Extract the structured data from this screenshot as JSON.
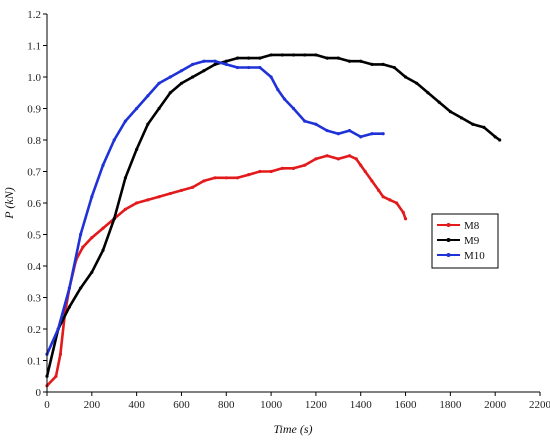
{
  "chart_data": {
    "type": "line",
    "xlabel": "Time (s)",
    "ylabel": "P (kN)",
    "xlim": [
      0,
      2200
    ],
    "ylim": [
      0,
      1.2
    ],
    "xticks": [
      "0",
      "200",
      "400",
      "600",
      "800",
      "1000",
      "1200",
      "1400",
      "1600",
      "1800",
      "2000",
      "2200"
    ],
    "yticks": [
      "0",
      "0.1",
      "0.2",
      "0.3",
      "0.4",
      "0.5",
      "0.6",
      "0.7",
      "0.8",
      "0.9",
      "1.0",
      "1.1",
      "1.2"
    ],
    "legend_position": "right",
    "grid": false,
    "series": [
      {
        "name": "M8",
        "color": "#e31a1c",
        "x": [
          0,
          40,
          60,
          80,
          100,
          130,
          160,
          200,
          250,
          300,
          350,
          400,
          450,
          500,
          550,
          600,
          650,
          700,
          750,
          800,
          850,
          900,
          950,
          1000,
          1050,
          1100,
          1150,
          1200,
          1250,
          1300,
          1350,
          1380,
          1400,
          1420,
          1450,
          1480,
          1500,
          1530,
          1560,
          1590,
          1600
        ],
        "y": [
          0.02,
          0.05,
          0.12,
          0.25,
          0.33,
          0.42,
          0.46,
          0.49,
          0.52,
          0.55,
          0.58,
          0.6,
          0.61,
          0.62,
          0.63,
          0.64,
          0.65,
          0.67,
          0.68,
          0.68,
          0.68,
          0.69,
          0.7,
          0.7,
          0.71,
          0.71,
          0.72,
          0.74,
          0.75,
          0.74,
          0.75,
          0.74,
          0.72,
          0.7,
          0.67,
          0.64,
          0.62,
          0.61,
          0.6,
          0.57,
          0.55
        ]
      },
      {
        "name": "M9",
        "color": "#000000",
        "x": [
          0,
          50,
          100,
          150,
          200,
          250,
          300,
          350,
          400,
          450,
          500,
          550,
          600,
          650,
          700,
          750,
          800,
          850,
          900,
          950,
          1000,
          1050,
          1100,
          1150,
          1200,
          1250,
          1300,
          1350,
          1400,
          1450,
          1500,
          1550,
          1600,
          1650,
          1700,
          1750,
          1800,
          1850,
          1900,
          1950,
          2000,
          2020
        ],
        "y": [
          0.05,
          0.2,
          0.27,
          0.33,
          0.38,
          0.45,
          0.55,
          0.68,
          0.77,
          0.85,
          0.9,
          0.95,
          0.98,
          1.0,
          1.02,
          1.04,
          1.05,
          1.06,
          1.06,
          1.06,
          1.07,
          1.07,
          1.07,
          1.07,
          1.07,
          1.06,
          1.06,
          1.05,
          1.05,
          1.04,
          1.04,
          1.03,
          1.0,
          0.98,
          0.95,
          0.92,
          0.89,
          0.87,
          0.85,
          0.84,
          0.81,
          0.8
        ]
      },
      {
        "name": "M10",
        "color": "#1f32d8",
        "x": [
          0,
          50,
          100,
          150,
          200,
          250,
          300,
          350,
          400,
          450,
          500,
          550,
          600,
          650,
          700,
          750,
          800,
          850,
          900,
          950,
          1000,
          1030,
          1060,
          1100,
          1150,
          1200,
          1250,
          1300,
          1350,
          1400,
          1450,
          1500
        ],
        "y": [
          0.12,
          0.2,
          0.33,
          0.5,
          0.62,
          0.72,
          0.8,
          0.86,
          0.9,
          0.94,
          0.98,
          1.0,
          1.02,
          1.04,
          1.05,
          1.05,
          1.04,
          1.03,
          1.03,
          1.03,
          1.0,
          0.96,
          0.93,
          0.9,
          0.86,
          0.85,
          0.83,
          0.82,
          0.83,
          0.81,
          0.82,
          0.82
        ]
      }
    ]
  }
}
